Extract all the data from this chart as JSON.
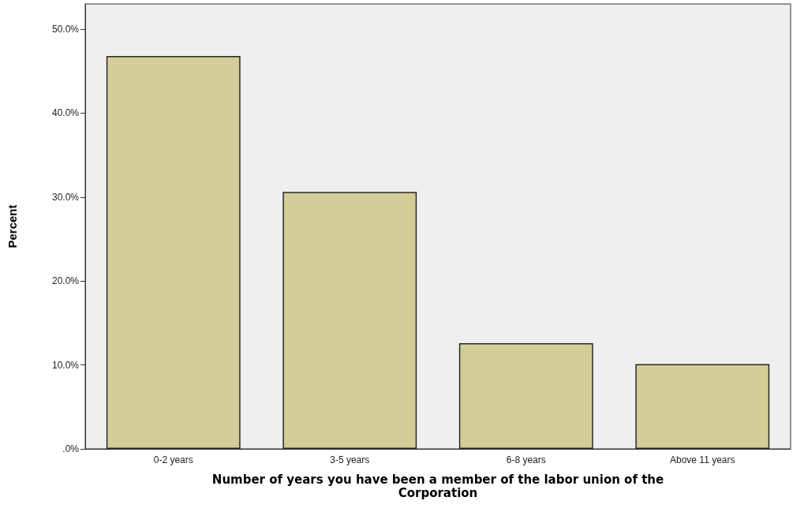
{
  "chart_data": {
    "type": "bar",
    "xlabel": "Number of years you have been a member of the labor union of the\nCorporation",
    "ylabel": "Percent",
    "categories": [
      "0-2 years",
      "3-5 years",
      "6-8 years",
      "Above 11 years"
    ],
    "values": [
      46.8,
      30.6,
      12.6,
      10.1
    ],
    "color": "#d3ce97",
    "ylim": [
      0,
      53
    ],
    "yticks": [
      {
        "value": 0,
        "label": ".0%"
      },
      {
        "value": 10,
        "label": "10.0%"
      },
      {
        "value": 20,
        "label": "20.0%"
      },
      {
        "value": 30,
        "label": "30.0%"
      },
      {
        "value": 40,
        "label": "40.0%"
      },
      {
        "value": 50,
        "label": "50.0%"
      }
    ],
    "grid": false
  }
}
